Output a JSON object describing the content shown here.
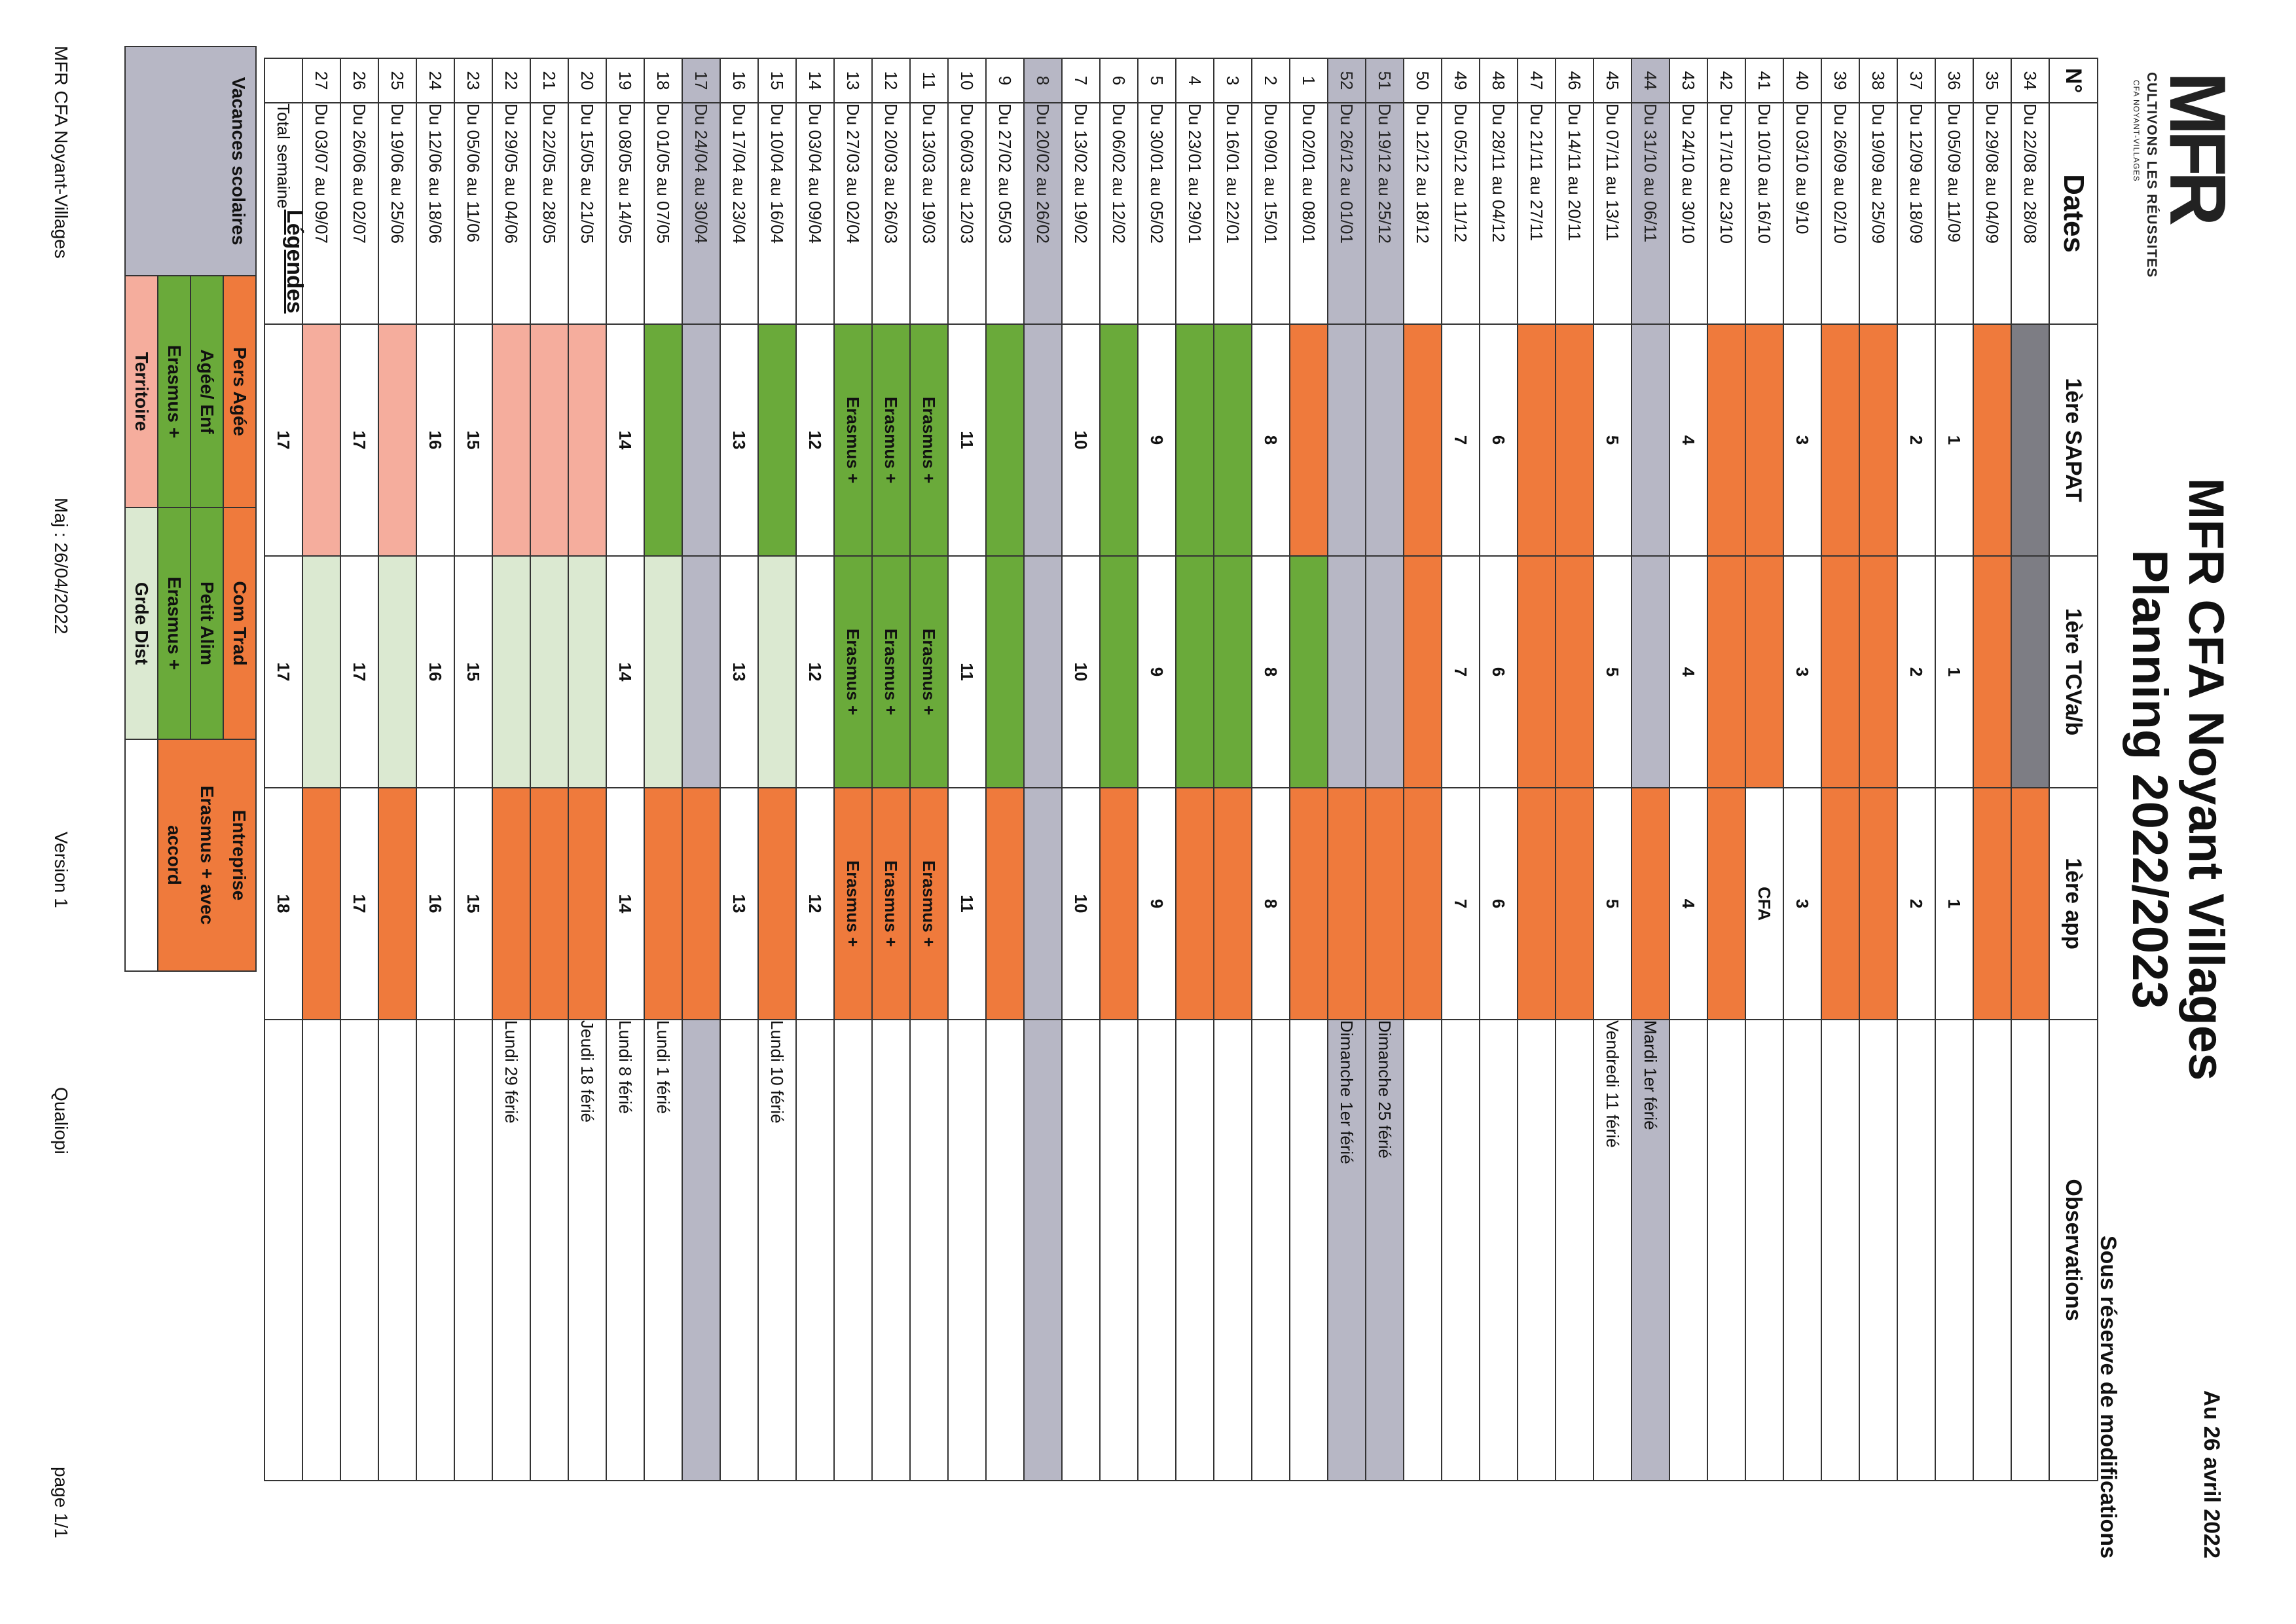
{
  "header": {
    "logo_text": "MFR",
    "logo_slogan": "CULTIVONS LES RÉUSSITES",
    "logo_subtitle": "CFA NOYANT-VILLAGES",
    "title": "MFR CFA Noyant Villages",
    "subtitle": "Planning 2022/2023",
    "date": "Au 26 avril 2022",
    "notice": "Sous réserve de modifications"
  },
  "colors": {
    "orange": "#ef7a3c",
    "green": "#6aaa3a",
    "light_green": "#dbe9d1",
    "salmon": "#f5ad9d",
    "grey": "#b7b7c5",
    "dark_grey": "#7d7d84"
  },
  "table": {
    "headers": [
      "N°",
      "Dates",
      "1ère SAPAT",
      "1ère TCVa/b",
      "1ère app",
      "Observations"
    ],
    "rows": [
      {
        "num": "34",
        "dates": "Du 22/08 au 28/08",
        "c1": "",
        "c2": "",
        "c3": "",
        "obs": "",
        "f1": "dark_grey",
        "f2": "dark_grey",
        "f3": "orange"
      },
      {
        "num": "35",
        "dates": "Du 29/08 au 04/09",
        "c1": "",
        "c2": "",
        "c3": "",
        "obs": "",
        "f1": "orange",
        "f2": "orange",
        "f3": "orange"
      },
      {
        "num": "36",
        "dates": "Du 05/09 au 11/09",
        "c1": "1",
        "c2": "1",
        "c3": "1",
        "obs": "",
        "f1": "",
        "f2": "",
        "f3": ""
      },
      {
        "num": "37",
        "dates": "Du 12/09 au 18/09",
        "c1": "2",
        "c2": "2",
        "c3": "2",
        "obs": "",
        "f1": "",
        "f2": "",
        "f3": ""
      },
      {
        "num": "38",
        "dates": "Du 19/09 au 25/09",
        "c1": "",
        "c2": "",
        "c3": "",
        "obs": "",
        "f1": "orange",
        "f2": "orange",
        "f3": "orange"
      },
      {
        "num": "39",
        "dates": "Du 26/09 au 02/10",
        "c1": "",
        "c2": "",
        "c3": "",
        "obs": "",
        "f1": "orange",
        "f2": "orange",
        "f3": "orange"
      },
      {
        "num": "40",
        "dates": "Du 03/10 au 9/10",
        "c1": "3",
        "c2": "3",
        "c3": "3",
        "obs": "",
        "f1": "",
        "f2": "",
        "f3": ""
      },
      {
        "num": "41",
        "dates": "Du 10/10 au 16/10",
        "c1": "",
        "c2": "",
        "c3": "CFA",
        "obs": "",
        "f1": "orange",
        "f2": "orange",
        "f3": ""
      },
      {
        "num": "42",
        "dates": "Du 17/10 au 23/10",
        "c1": "",
        "c2": "",
        "c3": "",
        "obs": "",
        "f1": "orange",
        "f2": "orange",
        "f3": "orange"
      },
      {
        "num": "43",
        "dates": "Du 24/10 au 30/10",
        "c1": "4",
        "c2": "4",
        "c3": "4",
        "obs": "",
        "f1": "",
        "f2": "",
        "f3": ""
      },
      {
        "num": "44",
        "dates": "Du 31/10 au 06/11",
        "c1": "",
        "c2": "",
        "c3": "",
        "obs": "Mardi 1er férié",
        "f1": "grey",
        "f2": "grey",
        "f3": "orange",
        "fd": "grey",
        "fo": "grey"
      },
      {
        "num": "45",
        "dates": "Du 07/11 au 13/11",
        "c1": "5",
        "c2": "5",
        "c3": "5",
        "obs": "Vendredi 11 férié",
        "f1": "",
        "f2": "",
        "f3": ""
      },
      {
        "num": "46",
        "dates": "Du 14/11 au 20/11",
        "c1": "",
        "c2": "",
        "c3": "",
        "obs": "",
        "f1": "orange",
        "f2": "orange",
        "f3": "orange"
      },
      {
        "num": "47",
        "dates": "Du 21/11 au 27/11",
        "c1": "",
        "c2": "",
        "c3": "",
        "obs": "",
        "f1": "orange",
        "f2": "orange",
        "f3": "orange"
      },
      {
        "num": "48",
        "dates": "Du 28/11 au 04/12",
        "c1": "6",
        "c2": "6",
        "c3": "6",
        "obs": "",
        "f1": "",
        "f2": "",
        "f3": ""
      },
      {
        "num": "49",
        "dates": "Du 05/12 au 11/12",
        "c1": "7",
        "c2": "7",
        "c3": "7",
        "obs": "",
        "f1": "",
        "f2": "",
        "f3": ""
      },
      {
        "num": "50",
        "dates": "Du 12/12 au 18/12",
        "c1": "",
        "c2": "",
        "c3": "",
        "obs": "",
        "f1": "orange",
        "f2": "orange",
        "f3": "orange"
      },
      {
        "num": "51",
        "dates": "Du 19/12 au 25/12",
        "c1": "",
        "c2": "",
        "c3": "",
        "obs": "Dimanche 25 férié",
        "f1": "grey",
        "f2": "grey",
        "f3": "orange",
        "fd": "grey",
        "fo": "grey"
      },
      {
        "num": "52",
        "dates": "Du 26/12 au 01/01",
        "c1": "",
        "c2": "",
        "c3": "",
        "obs": "Dimanche 1er férié",
        "f1": "grey",
        "f2": "grey",
        "f3": "orange",
        "fd": "grey",
        "fo": "grey"
      },
      {
        "num": "1",
        "dates": "Du 02/01 au 08/01",
        "c1": "",
        "c2": "",
        "c3": "",
        "obs": "",
        "f1": "orange",
        "f2": "green",
        "f3": "orange"
      },
      {
        "num": "2",
        "dates": "Du 09/01 au 15/01",
        "c1": "8",
        "c2": "8",
        "c3": "8",
        "obs": "",
        "f1": "",
        "f2": "",
        "f3": ""
      },
      {
        "num": "3",
        "dates": "Du 16/01 au 22/01",
        "c1": "",
        "c2": "",
        "c3": "",
        "obs": "",
        "f1": "green",
        "f2": "green",
        "f3": "orange"
      },
      {
        "num": "4",
        "dates": "Du 23/01 au 29/01",
        "c1": "",
        "c2": "",
        "c3": "",
        "obs": "",
        "f1": "green",
        "f2": "green",
        "f3": "orange"
      },
      {
        "num": "5",
        "dates": "Du 30/01 au 05/02",
        "c1": "9",
        "c2": "9",
        "c3": "9",
        "obs": "",
        "f1": "",
        "f2": "",
        "f3": ""
      },
      {
        "num": "6",
        "dates": "Du 06/02 au 12/02",
        "c1": "",
        "c2": "",
        "c3": "",
        "obs": "",
        "f1": "green",
        "f2": "green",
        "f3": "orange"
      },
      {
        "num": "7",
        "dates": "Du 13/02 au 19/02",
        "c1": "10",
        "c2": "10",
        "c3": "10",
        "obs": "",
        "f1": "",
        "f2": "",
        "f3": ""
      },
      {
        "num": "8",
        "dates": "Du 20/02 au 26/02",
        "c1": "",
        "c2": "",
        "c3": "",
        "obs": "",
        "f1": "grey",
        "f2": "grey",
        "f3": "grey",
        "fd": "grey",
        "fo": "grey"
      },
      {
        "num": "9",
        "dates": "Du 27/02 au 05/03",
        "c1": "",
        "c2": "",
        "c3": "",
        "obs": "",
        "f1": "green",
        "f2": "green",
        "f3": "orange"
      },
      {
        "num": "10",
        "dates": "Du 06/03 au 12/03",
        "c1": "11",
        "c2": "11",
        "c3": "11",
        "obs": "",
        "f1": "",
        "f2": "",
        "f3": ""
      },
      {
        "num": "11",
        "dates": "Du 13/03 au 19/03",
        "c1": "Erasmus +",
        "c2": "Erasmus +",
        "c3": "Erasmus +",
        "obs": "",
        "f1": "green",
        "f2": "green",
        "f3": "orange"
      },
      {
        "num": "12",
        "dates": "Du 20/03 au 26/03",
        "c1": "Erasmus +",
        "c2": "Erasmus +",
        "c3": "Erasmus +",
        "obs": "",
        "f1": "green",
        "f2": "green",
        "f3": "orange"
      },
      {
        "num": "13",
        "dates": "Du 27/03 au 02/04",
        "c1": "Erasmus +",
        "c2": "Erasmus +",
        "c3": "Erasmus +",
        "obs": "",
        "f1": "green",
        "f2": "green",
        "f3": "orange"
      },
      {
        "num": "14",
        "dates": "Du 03/04 au 09/04",
        "c1": "12",
        "c2": "12",
        "c3": "12",
        "obs": "",
        "f1": "",
        "f2": "",
        "f3": ""
      },
      {
        "num": "15",
        "dates": "Du 10/04 au 16/04",
        "c1": "",
        "c2": "",
        "c3": "",
        "obs": "Lundi 10 férié",
        "f1": "green",
        "f2": "light_green",
        "f3": "orange"
      },
      {
        "num": "16",
        "dates": "Du 17/04 au 23/04",
        "c1": "13",
        "c2": "13",
        "c3": "13",
        "obs": "",
        "f1": "",
        "f2": "",
        "f3": ""
      },
      {
        "num": "17",
        "dates": "Du 24/04 au 30/04",
        "c1": "",
        "c2": "",
        "c3": "",
        "obs": "",
        "f1": "grey",
        "f2": "grey",
        "f3": "orange",
        "fd": "grey",
        "fo": "grey"
      },
      {
        "num": "18",
        "dates": "Du 01/05 au 07/05",
        "c1": "",
        "c2": "",
        "c3": "",
        "obs": "Lundi 1 férié",
        "f1": "green",
        "f2": "light_green",
        "f3": "orange"
      },
      {
        "num": "19",
        "dates": "Du 08/05 au 14/05",
        "c1": "14",
        "c2": "14",
        "c3": "14",
        "obs": "Lundi 8 férié",
        "f1": "",
        "f2": "",
        "f3": ""
      },
      {
        "num": "20",
        "dates": "Du 15/05 au 21/05",
        "c1": "",
        "c2": "",
        "c3": "",
        "obs": "Jeudi 18 férié",
        "f1": "salmon",
        "f2": "light_green",
        "f3": "orange"
      },
      {
        "num": "21",
        "dates": "Du 22/05 au 28/05",
        "c1": "",
        "c2": "",
        "c3": "",
        "obs": "",
        "f1": "salmon",
        "f2": "light_green",
        "f3": "orange"
      },
      {
        "num": "22",
        "dates": "Du 29/05 au 04/06",
        "c1": "",
        "c2": "",
        "c3": "",
        "obs": "Lundi 29 férié",
        "f1": "salmon",
        "f2": "light_green",
        "f3": "orange"
      },
      {
        "num": "23",
        "dates": "Du 05/06 au 11/06",
        "c1": "15",
        "c2": "15",
        "c3": "15",
        "obs": "",
        "f1": "",
        "f2": "",
        "f3": ""
      },
      {
        "num": "24",
        "dates": "Du 12/06 au 18/06",
        "c1": "16",
        "c2": "16",
        "c3": "16",
        "obs": "",
        "f1": "",
        "f2": "",
        "f3": ""
      },
      {
        "num": "25",
        "dates": "Du 19/06 au 25/06",
        "c1": "",
        "c2": "",
        "c3": "",
        "obs": "",
        "f1": "salmon",
        "f2": "light_green",
        "f3": "orange"
      },
      {
        "num": "26",
        "dates": "Du 26/06 au 02/07",
        "c1": "17",
        "c2": "17",
        "c3": "17",
        "obs": "",
        "f1": "",
        "f2": "",
        "f3": ""
      },
      {
        "num": "27",
        "dates": "Du 03/07 au 09/07",
        "c1": "",
        "c2": "",
        "c3": "",
        "obs": "",
        "f1": "salmon",
        "f2": "light_green",
        "f3": "orange"
      },
      {
        "num": "",
        "dates": "Total semaine",
        "c1": "17",
        "c2": "17",
        "c3": "18",
        "obs": "",
        "f1": "",
        "f2": "",
        "f3": ""
      }
    ]
  },
  "legend": {
    "title": "Légendes",
    "vacances": "Vacances scolaires",
    "rows": [
      {
        "a": "Pers Agée",
        "b": "Com Trad",
        "c": "Entreprise",
        "fa": "orange",
        "fb": "orange",
        "fc": "orange"
      },
      {
        "a": "Agée/ Enf",
        "b": "Petit Alim",
        "c": "Erasmus + avec",
        "fa": "green",
        "fb": "green",
        "fc": "orange"
      },
      {
        "a": "Erasmus +",
        "b": "Erasmus +",
        "c": "accord",
        "fa": "green",
        "fb": "green",
        "fc": "orange"
      },
      {
        "a": "Territoire",
        "b": "Grde Dist",
        "c": "",
        "fa": "salmon",
        "fb": "light_green",
        "fc": ""
      }
    ]
  },
  "footer": {
    "org": "MFR CFA Noyant-Villages",
    "maj": "Maj : 26/04/2022",
    "version": "Version 1",
    "qualiopi": "Qualiopi",
    "page": "page 1/1"
  }
}
